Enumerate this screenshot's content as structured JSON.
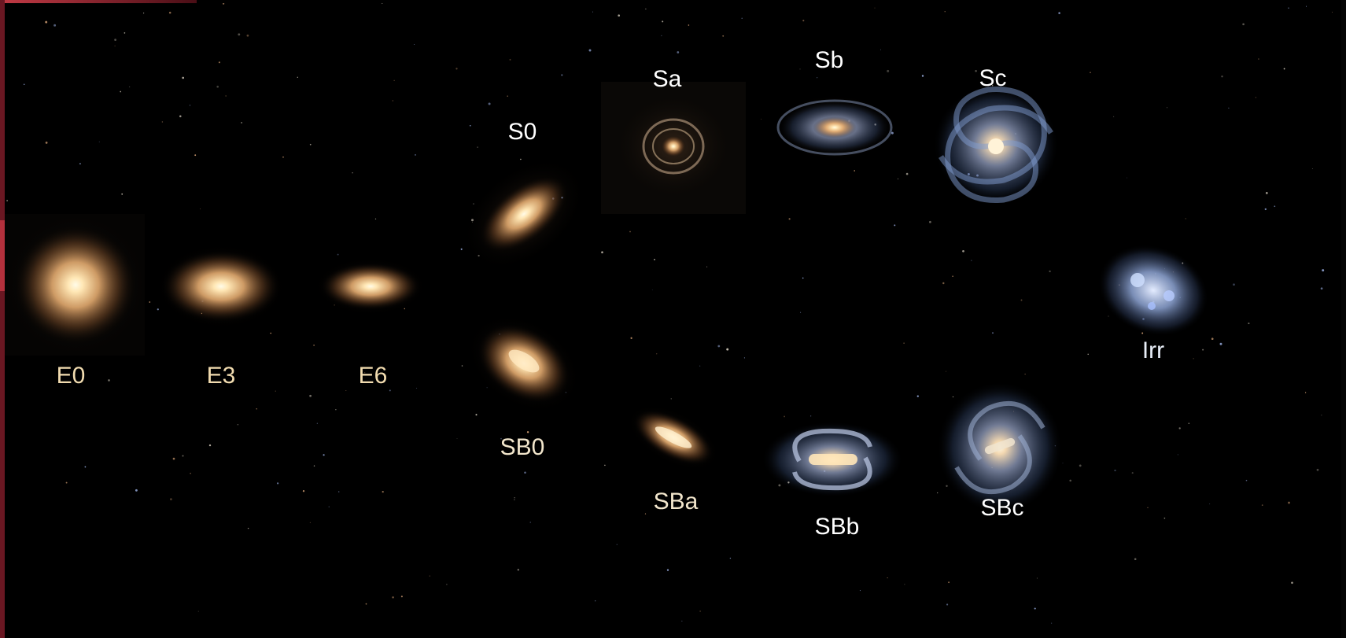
{
  "colors": {
    "background": "#000000",
    "elliptical_label": "#f2dcb0",
    "spiral_label": "#ffffff",
    "irregular_label": "#e8eef8",
    "frame_edge": "#8a1f2c"
  },
  "diagram": {
    "elliptical": [
      {
        "label": "E0"
      },
      {
        "label": "E3"
      },
      {
        "label": "E6"
      }
    ],
    "lenticular": [
      {
        "label": "S0"
      },
      {
        "label": "SB0"
      }
    ],
    "normal_spirals": [
      {
        "label": "Sa"
      },
      {
        "label": "Sb"
      },
      {
        "label": "Sc"
      }
    ],
    "barred_spirals": [
      {
        "label": "SBa"
      },
      {
        "label": "SBb"
      },
      {
        "label": "SBc"
      }
    ],
    "irregular": [
      {
        "label": "Irr"
      }
    ]
  }
}
